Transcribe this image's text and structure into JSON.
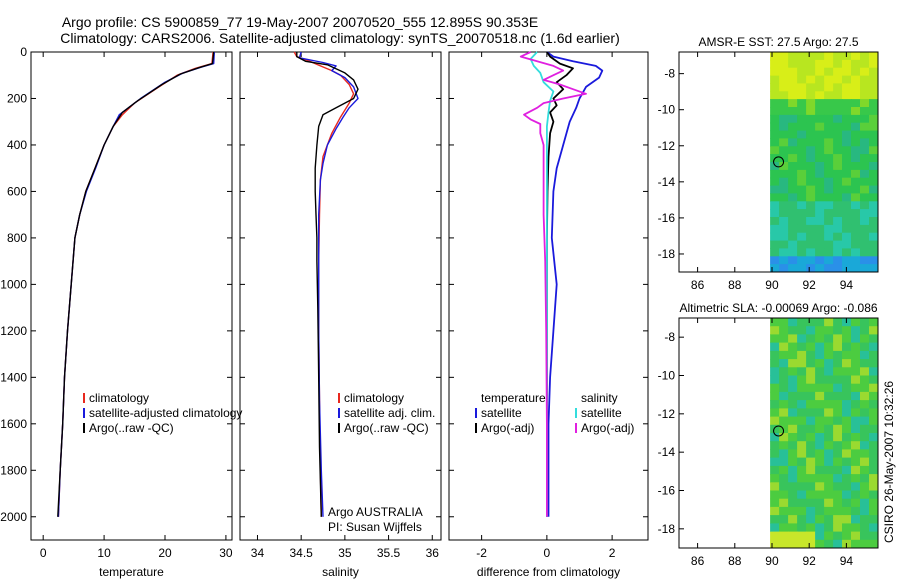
{
  "header": {
    "line1": "Argo profile: CS 5900859_77 19-May-2007 20070520_555 12.895S 90.353E",
    "line2": "Climatology: CARS2006. Satellite-adjusted climatology: synTS_20070518.nc (1.6d earlier)"
  },
  "side_label": "CSIRO 26-May-2007 10:32:26",
  "colors": {
    "red": "#e8281e",
    "blue": "#1a1adc",
    "black": "#000000",
    "cyan": "#33dddd",
    "magenta": "#e020e0"
  },
  "chart_data": [
    {
      "id": "temperature",
      "type": "line",
      "xlabel": "temperature",
      "xlim": [
        -2,
        31
      ],
      "ylim": [
        0,
        2100
      ],
      "xticks": [
        0,
        10,
        20,
        30
      ],
      "yticks": [
        0,
        200,
        400,
        600,
        800,
        1000,
        1200,
        1400,
        1600,
        1800,
        2000
      ],
      "legend": [
        "climatology",
        "satellite-adjusted climatology",
        "Argo(..raw -QC)"
      ],
      "series": [
        {
          "name": "climatology",
          "color": "red",
          "points": [
            [
              27.9,
              0
            ],
            [
              27.7,
              50
            ],
            [
              25,
              70
            ],
            [
              22,
              100
            ],
            [
              19,
              150
            ],
            [
              15,
              220
            ],
            [
              13,
              270
            ],
            [
              11.5,
              320
            ],
            [
              10,
              400
            ],
            [
              8.5,
              500
            ],
            [
              7,
              600
            ],
            [
              6,
              700
            ],
            [
              5.2,
              800
            ],
            [
              4.6,
              1000
            ],
            [
              4,
              1200
            ],
            [
              3.5,
              1400
            ],
            [
              3.2,
              1600
            ],
            [
              2.8,
              1800
            ],
            [
              2.5,
              2000
            ]
          ]
        },
        {
          "name": "satellite-adjusted climatology",
          "color": "blue",
          "points": [
            [
              28.1,
              0
            ],
            [
              28,
              50
            ],
            [
              26,
              65
            ],
            [
              23,
              90
            ],
            [
              20,
              130
            ],
            [
              16,
              200
            ],
            [
              12.5,
              270
            ],
            [
              11.5,
              320
            ],
            [
              10,
              400
            ],
            [
              8.6,
              500
            ],
            [
              7.1,
              600
            ],
            [
              6,
              700
            ],
            [
              5.2,
              800
            ],
            [
              4.6,
              1000
            ],
            [
              4,
              1200
            ],
            [
              3.5,
              1400
            ],
            [
              3.2,
              1600
            ],
            [
              2.8,
              1800
            ],
            [
              2.5,
              2000
            ]
          ]
        },
        {
          "name": "Argo(..raw -QC)",
          "color": "black",
          "points": [
            [
              28,
              0
            ],
            [
              27.8,
              50
            ],
            [
              25.5,
              68
            ],
            [
              22.5,
              95
            ],
            [
              19.5,
              140
            ],
            [
              15.5,
              210
            ],
            [
              13,
              260
            ],
            [
              11.5,
              320
            ],
            [
              10,
              400
            ],
            [
              8.5,
              500
            ],
            [
              7,
              600
            ],
            [
              6,
              700
            ],
            [
              5.2,
              800
            ],
            [
              4.6,
              1000
            ],
            [
              4,
              1200
            ],
            [
              3.5,
              1400
            ],
            [
              3.2,
              1600
            ],
            [
              2.8,
              1800
            ],
            [
              2.4,
              2000
            ]
          ]
        }
      ]
    },
    {
      "id": "salinity",
      "type": "line",
      "xlabel": "salinity",
      "xlim": [
        33.8,
        36.1
      ],
      "ylim": [
        0,
        2100
      ],
      "xticks": [
        34,
        34.5,
        35,
        35.5,
        36
      ],
      "xtick_labels": [
        "34",
        "34.5",
        "35",
        "35.5",
        "36"
      ],
      "legend": [
        "climatology",
        "satellite adj. clim.",
        "Argo(..raw -QC)"
      ],
      "annotation": [
        "Argo AUSTRALIA",
        "PI: Susan Wijffels"
      ],
      "series": [
        {
          "name": "climatology",
          "color": "red",
          "points": [
            [
              34.42,
              0
            ],
            [
              34.45,
              20
            ],
            [
              34.6,
              40
            ],
            [
              34.72,
              60
            ],
            [
              34.85,
              80
            ],
            [
              34.95,
              100
            ],
            [
              35.05,
              140
            ],
            [
              35.1,
              180
            ],
            [
              35.05,
              220
            ],
            [
              34.95,
              280
            ],
            [
              34.85,
              350
            ],
            [
              34.75,
              450
            ],
            [
              34.72,
              550
            ],
            [
              34.71,
              700
            ],
            [
              34.7,
              900
            ],
            [
              34.7,
              1200
            ],
            [
              34.71,
              1500
            ],
            [
              34.72,
              1800
            ],
            [
              34.73,
              2000
            ]
          ]
        },
        {
          "name": "satellite adj. clim.",
          "color": "blue",
          "points": [
            [
              34.5,
              0
            ],
            [
              34.48,
              25
            ],
            [
              34.75,
              45
            ],
            [
              34.9,
              60
            ],
            [
              34.85,
              80
            ],
            [
              35.0,
              110
            ],
            [
              35.1,
              150
            ],
            [
              35.15,
              200
            ],
            [
              35.05,
              240
            ],
            [
              34.98,
              280
            ],
            [
              34.9,
              330
            ],
            [
              34.8,
              400
            ],
            [
              34.75,
              480
            ],
            [
              34.72,
              550
            ],
            [
              34.7,
              700
            ],
            [
              34.7,
              900
            ],
            [
              34.7,
              1200
            ],
            [
              34.71,
              1500
            ],
            [
              34.73,
              1800
            ],
            [
              34.75,
              2000
            ]
          ]
        },
        {
          "name": "Argo(..raw -QC)",
          "color": "black",
          "points": [
            [
              34.45,
              0
            ],
            [
              34.45,
              20
            ],
            [
              34.55,
              40
            ],
            [
              34.8,
              55
            ],
            [
              35.0,
              90
            ],
            [
              35.1,
              120
            ],
            [
              35.15,
              160
            ],
            [
              35.1,
              200
            ],
            [
              34.9,
              240
            ],
            [
              34.75,
              270
            ],
            [
              34.7,
              320
            ],
            [
              34.68,
              400
            ],
            [
              34.66,
              500
            ],
            [
              34.66,
              600
            ],
            [
              34.67,
              700
            ],
            [
              34.68,
              800
            ],
            [
              34.68,
              900
            ],
            [
              34.69,
              1100
            ],
            [
              34.7,
              1400
            ],
            [
              34.71,
              1700
            ],
            [
              34.73,
              2000
            ]
          ]
        }
      ]
    },
    {
      "id": "difference",
      "type": "line",
      "xlabel": "difference from climatology",
      "xlim": [
        -3,
        3.1
      ],
      "ylim": [
        0,
        2100
      ],
      "xticks": [
        -2,
        0,
        2
      ],
      "legend_groups": [
        {
          "title": "temperature",
          "items": [
            {
              "label": "satellite",
              "color": "blue"
            },
            {
              "label": "Argo(-adj)",
              "color": "black"
            }
          ]
        },
        {
          "title": "salinity",
          "items": [
            {
              "label": "satellite",
              "color": "cyan"
            },
            {
              "label": "Argo(-adj)",
              "color": "magenta"
            }
          ]
        }
      ],
      "series": [
        {
          "name": "temperature satellite",
          "color": "blue",
          "points": [
            [
              0,
              0
            ],
            [
              0.2,
              20
            ],
            [
              0.8,
              40
            ],
            [
              1.5,
              60
            ],
            [
              1.7,
              80
            ],
            [
              1.6,
              110
            ],
            [
              1.2,
              150
            ],
            [
              1.0,
              200
            ],
            [
              0.9,
              240
            ],
            [
              0.7,
              300
            ],
            [
              0.5,
              400
            ],
            [
              0.3,
              500
            ],
            [
              0.2,
              600
            ],
            [
              0.15,
              800
            ],
            [
              0.3,
              1000
            ],
            [
              0.2,
              1200
            ],
            [
              0.1,
              1400
            ],
            [
              0.05,
              1600
            ],
            [
              0.05,
              1800
            ],
            [
              0.05,
              2000
            ]
          ]
        },
        {
          "name": "temperature Argo(-adj)",
          "color": "black",
          "points": [
            [
              0,
              0
            ],
            [
              0.1,
              20
            ],
            [
              0.4,
              50
            ],
            [
              0.8,
              70
            ],
            [
              0.6,
              100
            ],
            [
              0.3,
              130
            ],
            [
              0.5,
              160
            ],
            [
              0.2,
              200
            ],
            [
              0.3,
              230
            ],
            [
              0.1,
              260
            ],
            [
              0.2,
              300
            ],
            [
              0.1,
              350
            ],
            [
              0.05,
              450
            ],
            [
              0.02,
              600
            ],
            [
              0.0,
              800
            ],
            [
              0.0,
              1200
            ],
            [
              0.0,
              1600
            ],
            [
              0.0,
              2000
            ]
          ]
        },
        {
          "name": "salinity satellite",
          "color": "cyan",
          "points": [
            [
              -0.3,
              0
            ],
            [
              -0.5,
              30
            ],
            [
              -0.4,
              60
            ],
            [
              -0.2,
              90
            ],
            [
              -0.1,
              130
            ],
            [
              0.2,
              170
            ],
            [
              0.1,
              210
            ],
            [
              0.05,
              260
            ],
            [
              0.0,
              320
            ],
            [
              0.0,
              500
            ],
            [
              0.0,
              800
            ],
            [
              0.0,
              1200
            ],
            [
              0.0,
              1600
            ],
            [
              0.0,
              2000
            ]
          ]
        },
        {
          "name": "salinity Argo(-adj)",
          "color": "magenta",
          "points": [
            [
              -0.5,
              0
            ],
            [
              -0.8,
              20
            ],
            [
              -0.3,
              40
            ],
            [
              0.2,
              60
            ],
            [
              0.5,
              80
            ],
            [
              0.2,
              100
            ],
            [
              -0.1,
              120
            ],
            [
              0.4,
              140
            ],
            [
              0.8,
              160
            ],
            [
              1.2,
              180
            ],
            [
              0.5,
              200
            ],
            [
              -0.1,
              220
            ],
            [
              -0.3,
              240
            ],
            [
              -0.7,
              270
            ],
            [
              -0.5,
              290
            ],
            [
              -0.2,
              310
            ],
            [
              -0.2,
              350
            ],
            [
              -0.1,
              400
            ],
            [
              -0.1,
              500
            ],
            [
              -0.1,
              700
            ],
            [
              -0.05,
              900
            ],
            [
              -0.02,
              1200
            ],
            [
              0.0,
              1600
            ],
            [
              0.0,
              2000
            ]
          ]
        }
      ]
    },
    {
      "id": "sst_map",
      "type": "heatmap",
      "title": "AMSR-E SST: 27.5 Argo: 27.5",
      "xlim": [
        85,
        95.7
      ],
      "ylim": [
        -19,
        -6.8
      ],
      "xticks": [
        86,
        88,
        90,
        92,
        94
      ],
      "yticks": [
        -8,
        -10,
        -12,
        -14,
        -16,
        -18
      ],
      "data_lon_range": [
        89.9,
        95.7
      ],
      "marker": {
        "lon": 90.353,
        "lat": -12.895
      }
    },
    {
      "id": "sla_map",
      "type": "heatmap",
      "title": "Altimetric SLA: -0.00069 Argo: -0.086",
      "xlim": [
        85,
        95.7
      ],
      "ylim": [
        -19,
        -7
      ],
      "xticks": [
        86,
        88,
        90,
        92,
        94
      ],
      "yticks": [
        -8,
        -10,
        -12,
        -14,
        -16,
        -18
      ],
      "data_lon_range": [
        89.9,
        95.7
      ],
      "marker": {
        "lon": 90.353,
        "lat": -12.895
      }
    }
  ]
}
